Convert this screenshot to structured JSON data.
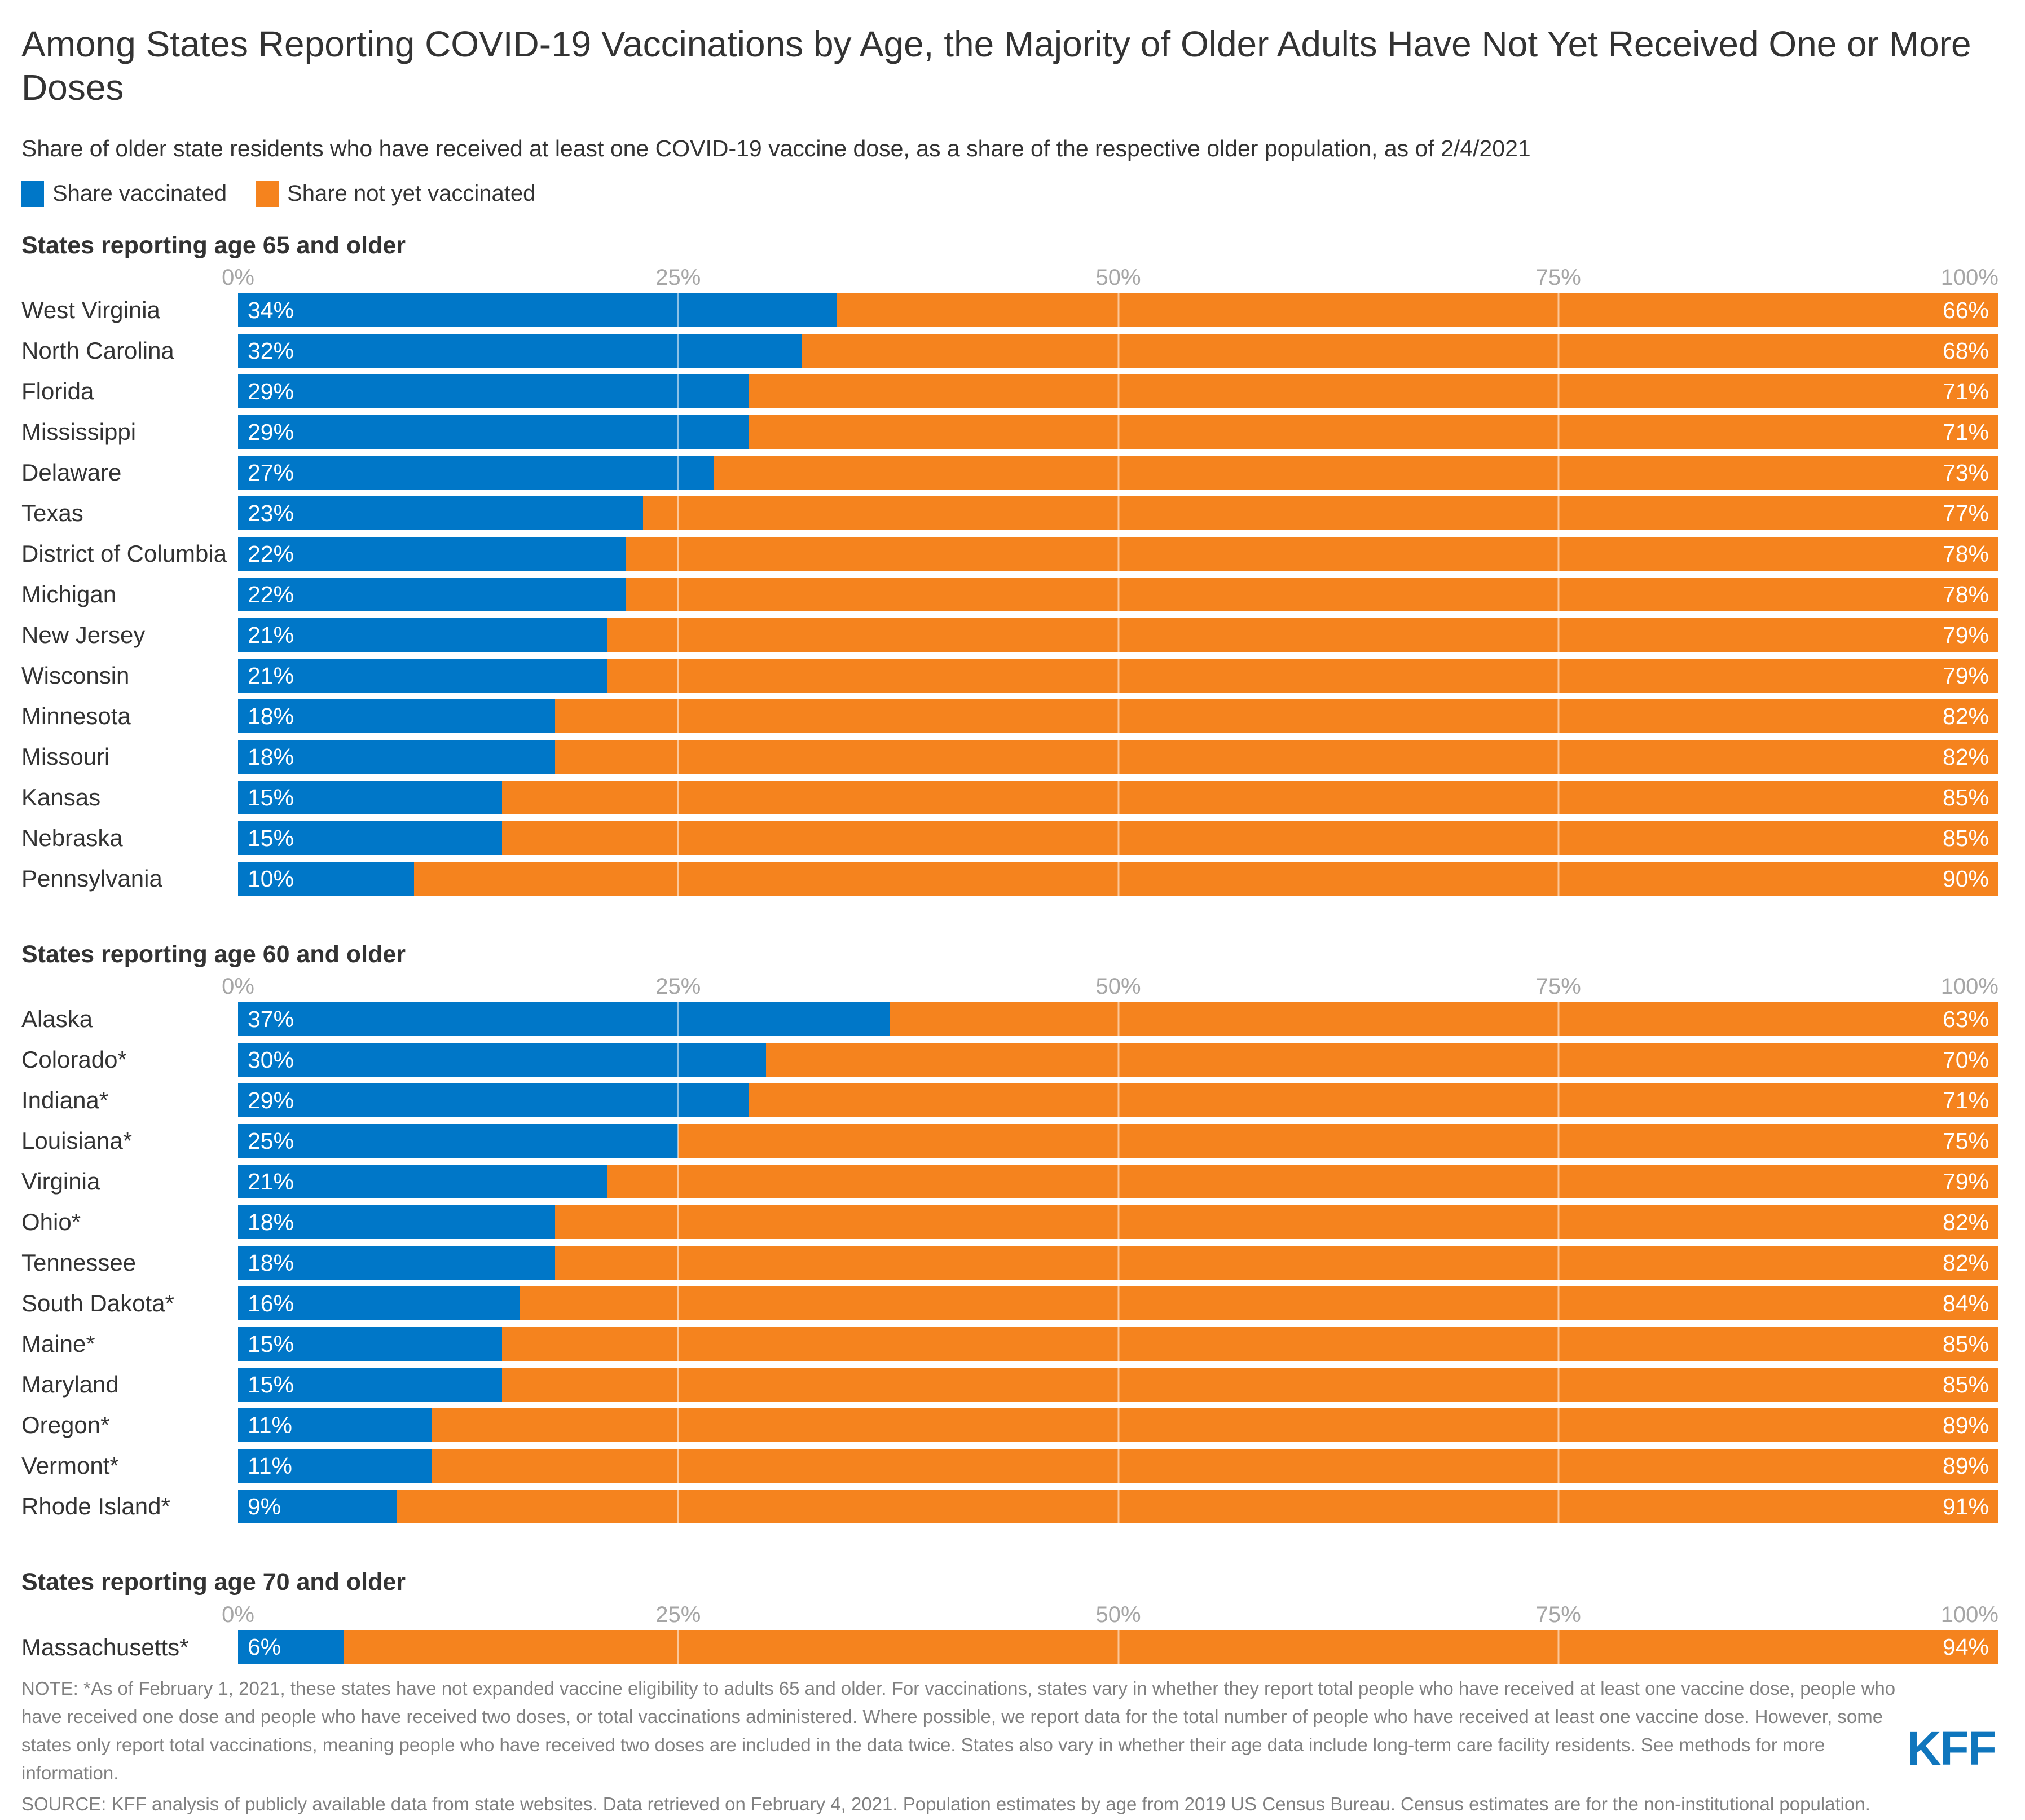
{
  "title": "Among States Reporting COVID-19 Vaccinations by Age, the Majority of Older Adults Have Not Yet Received One or More Doses",
  "subtitle": "Share of older state residents who have received at least one COVID-19 vaccine dose, as a share of the respective older population, as of 2/4/2021",
  "legend": [
    {
      "label": "Share vaccinated",
      "color": "#0077C8"
    },
    {
      "label": "Share not yet vaccinated",
      "color": "#F5831E"
    }
  ],
  "chart_data": [
    {
      "type": "bar",
      "orientation": "horizontal",
      "stacked": true,
      "title": "States reporting age 65 and older",
      "xlim": [
        0,
        100
      ],
      "x_ticks": [
        "0%",
        "25%",
        "50%",
        "75%",
        "100%"
      ],
      "grid": true,
      "categories": [
        "West Virginia",
        "North Carolina",
        "Florida",
        "Mississippi",
        "Delaware",
        "Texas",
        "District of Columbia",
        "Michigan",
        "New Jersey",
        "Wisconsin",
        "Minnesota",
        "Missouri",
        "Kansas",
        "Nebraska",
        "Pennsylvania"
      ],
      "series": [
        {
          "name": "Share vaccinated",
          "color": "#0077C8",
          "values": [
            34,
            32,
            29,
            29,
            27,
            23,
            22,
            22,
            21,
            21,
            18,
            18,
            15,
            15,
            10
          ]
        },
        {
          "name": "Share not yet vaccinated",
          "color": "#F5831E",
          "values": [
            66,
            68,
            71,
            71,
            73,
            77,
            78,
            78,
            79,
            79,
            82,
            82,
            85,
            85,
            90
          ]
        }
      ]
    },
    {
      "type": "bar",
      "orientation": "horizontal",
      "stacked": true,
      "title": "States reporting age 60 and older",
      "xlim": [
        0,
        100
      ],
      "x_ticks": [
        "0%",
        "25%",
        "50%",
        "75%",
        "100%"
      ],
      "grid": true,
      "categories": [
        "Alaska",
        "Colorado*",
        "Indiana*",
        "Louisiana*",
        "Virginia",
        "Ohio*",
        "Tennessee",
        "South Dakota*",
        "Maine*",
        "Maryland",
        "Oregon*",
        "Vermont*",
        "Rhode Island*"
      ],
      "series": [
        {
          "name": "Share vaccinated",
          "color": "#0077C8",
          "values": [
            37,
            30,
            29,
            25,
            21,
            18,
            18,
            16,
            15,
            15,
            11,
            11,
            9
          ]
        },
        {
          "name": "Share not yet vaccinated",
          "color": "#F5831E",
          "values": [
            63,
            70,
            71,
            75,
            79,
            82,
            82,
            84,
            85,
            85,
            89,
            89,
            91
          ]
        }
      ]
    },
    {
      "type": "bar",
      "orientation": "horizontal",
      "stacked": true,
      "title": "States reporting age 70 and older",
      "xlim": [
        0,
        100
      ],
      "x_ticks": [
        "0%",
        "25%",
        "50%",
        "75%",
        "100%"
      ],
      "grid": true,
      "categories": [
        "Massachusetts*"
      ],
      "series": [
        {
          "name": "Share vaccinated",
          "color": "#0077C8",
          "values": [
            6
          ]
        },
        {
          "name": "Share not yet vaccinated",
          "color": "#F5831E",
          "values": [
            94
          ]
        }
      ]
    }
  ],
  "note": "NOTE: *As of February 1, 2021, these states have not expanded vaccine eligibility to adults 65 and older. For vaccinations, states vary in whether they report total people who have received at least one vaccine dose, people who have received one dose and people who have received two doses, or total vaccinations administered. Where possible, we report data for the total number of people who have received at least one vaccine dose. However, some states only report total vaccinations, meaning people who have received two doses are included in the data twice. States also vary in whether their age data include long-term care facility residents. See methods for more information.",
  "source": "SOURCE: KFF analysis of publicly available data from state websites. Data retrieved on February 4, 2021. Population estimates by age from 2019 US Census Bureau. Census estimates are for the non-institutional population.",
  "logo_text": "KFF"
}
